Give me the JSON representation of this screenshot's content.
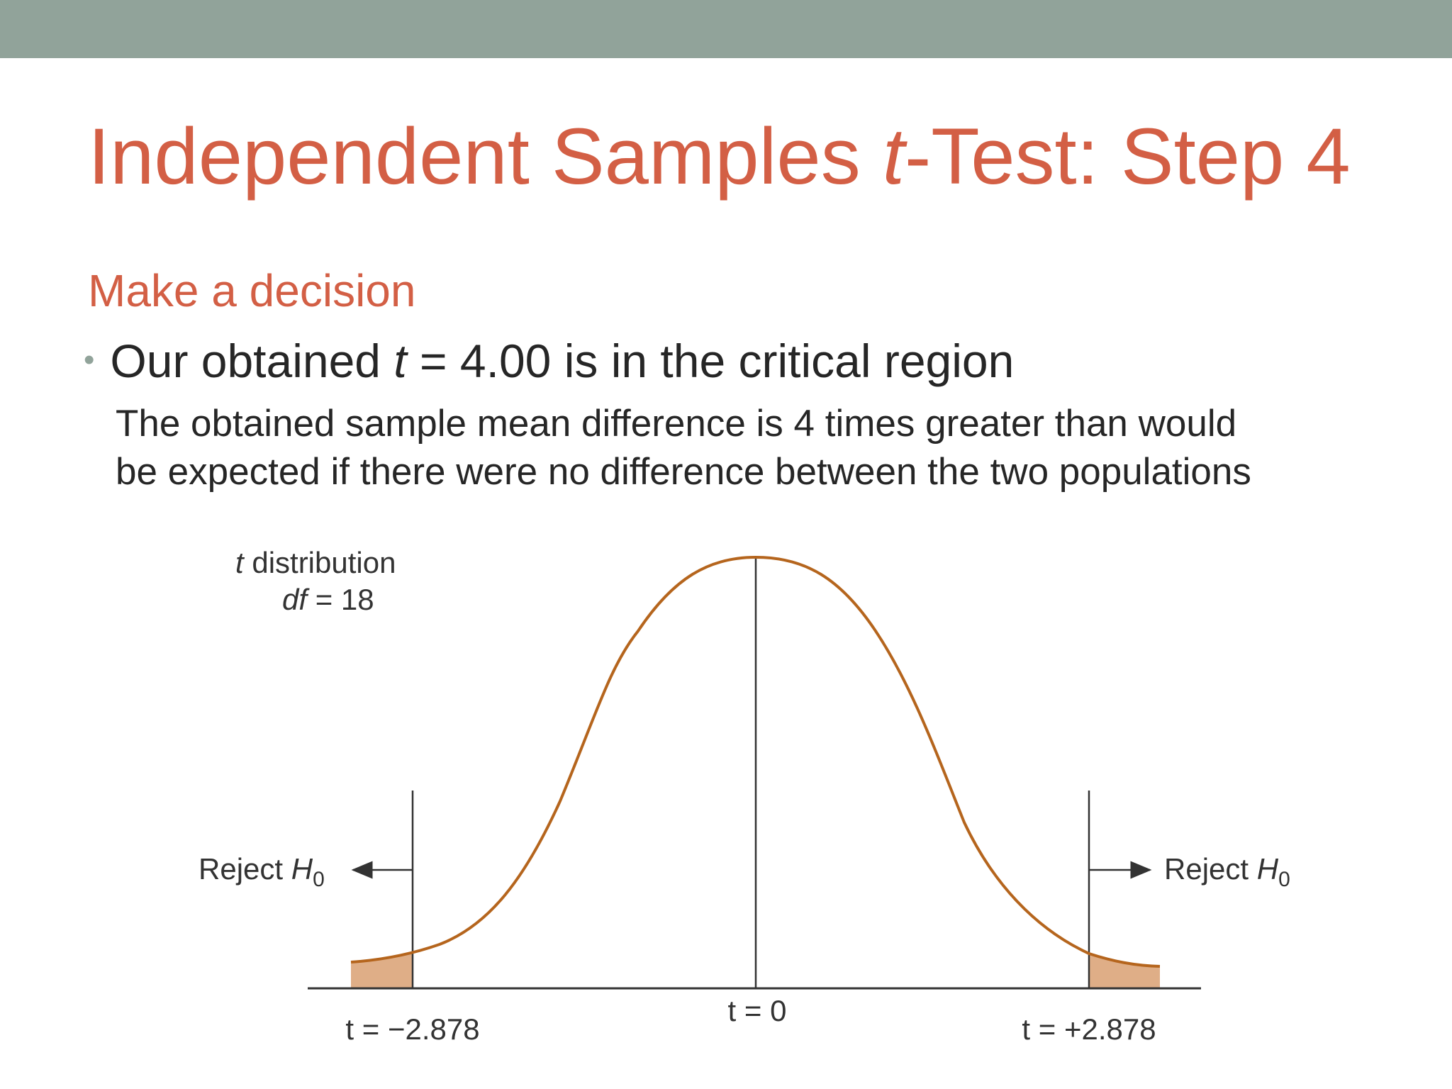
{
  "slide": {
    "title_prefix": "Independent Samples ",
    "title_italic": "t",
    "title_suffix": "-Test: Step 4",
    "subtitle": "Make a decision",
    "bullet_prefix": "Our obtained ",
    "bullet_italic": "t",
    "bullet_suffix": " = 4.00 is in the critical region",
    "sub_line1": "The obtained sample mean difference is 4 times greater than would",
    "sub_line2": "be expected if there were no difference between the two populations"
  },
  "figure": {
    "dist_label_italic": "t",
    "dist_label_rest": " distribution",
    "df_italic": "df",
    "df_rest": " = 18",
    "reject_text": "Reject ",
    "reject_h": "H",
    "reject_sub": "0",
    "left_crit": "t = −2.878",
    "center_label": "t = 0",
    "right_crit": "t = +2.878",
    "curve_color": "#b5651d",
    "tail_fill": "#dfae87"
  }
}
